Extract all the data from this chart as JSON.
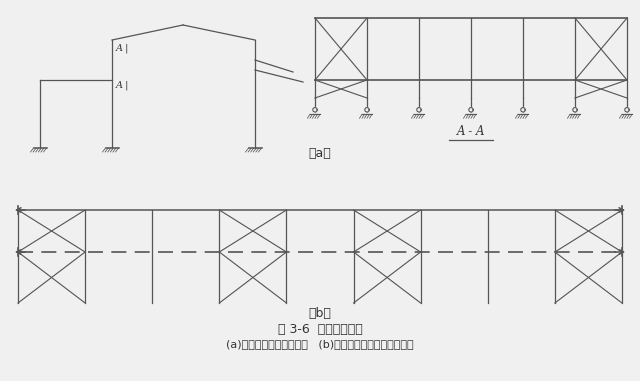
{
  "title": "图 3-6  多层柱间支撑",
  "caption": "(a)高低跨时柱间支撑布置   (b)带吊车的厂房柱间支撑布置",
  "label_a": "（a）",
  "label_b": "（b）",
  "label_AA": "A - A",
  "bg_color": "#f0f0f0",
  "line_color": "#555555",
  "text_color": "#333333"
}
